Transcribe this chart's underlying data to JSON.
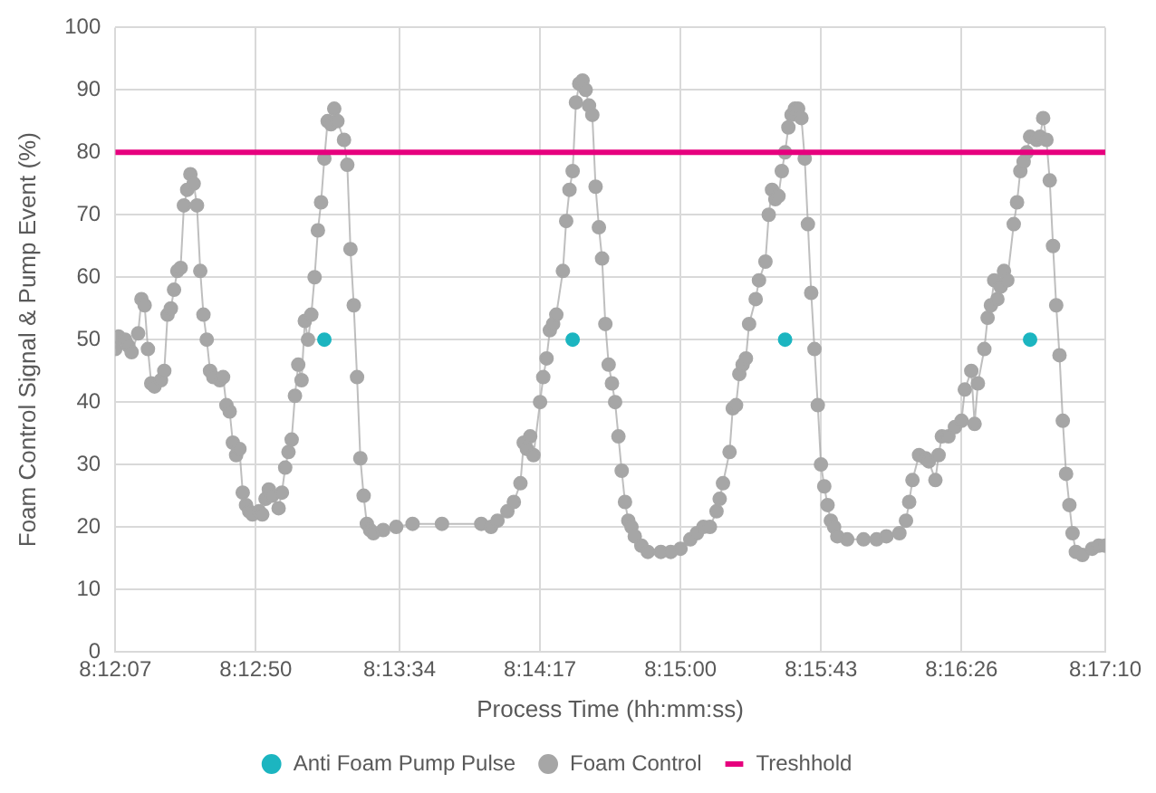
{
  "chart_data": {
    "type": "line",
    "xlabel": "Process Time (hh:mm:ss)",
    "ylabel": "Foam Control Signal & Pump Event (%)",
    "xlim": [
      8.201944,
      8.286111
    ],
    "ylim": [
      0,
      100
    ],
    "xticks": [
      {
        "value": 8.201944,
        "label": "8:12:07"
      },
      {
        "value": 8.213889,
        "label": "8:12:50"
      },
      {
        "value": 8.226111,
        "label": "8:13:34"
      },
      {
        "value": 8.238056,
        "label": "8:14:17"
      },
      {
        "value": 8.25,
        "label": "8:15:00"
      },
      {
        "value": 8.261944,
        "label": "8:15:43"
      },
      {
        "value": 8.273889,
        "label": "8:16:26"
      },
      {
        "value": 8.286111,
        "label": "8:17:10"
      }
    ],
    "yticks": [
      0,
      10,
      20,
      30,
      40,
      50,
      60,
      70,
      80,
      90,
      100
    ],
    "grid": true,
    "legend": "bottom",
    "marker": "circle",
    "series": [
      {
        "name": "Anti Foam Pump Pulse",
        "type": "scatter",
        "color": "#1cb5c0",
        "x": [
          8.21972,
          8.24083,
          8.25889,
          8.27972
        ],
        "values": [
          50,
          50,
          50,
          50
        ]
      },
      {
        "name": "Foam Control",
        "type": "line",
        "color": "#a6a6a6",
        "x": [
          8.201944,
          8.20222,
          8.20278,
          8.20306,
          8.20333,
          8.20389,
          8.20417,
          8.20444,
          8.20472,
          8.205,
          8.20528,
          8.20583,
          8.20611,
          8.20639,
          8.20667,
          8.20694,
          8.20722,
          8.2075,
          8.20778,
          8.20806,
          8.20833,
          8.20861,
          8.20889,
          8.20917,
          8.20944,
          8.20972,
          8.21,
          8.21028,
          8.21083,
          8.21111,
          8.21139,
          8.21167,
          8.21194,
          8.21222,
          8.2125,
          8.21278,
          8.21306,
          8.21333,
          8.21361,
          8.21417,
          8.21444,
          8.21472,
          8.215,
          8.21528,
          8.21583,
          8.21611,
          8.21639,
          8.21667,
          8.21694,
          8.21722,
          8.2175,
          8.21778,
          8.21806,
          8.21833,
          8.21861,
          8.21889,
          8.21917,
          8.21944,
          8.21972,
          8.22,
          8.22028,
          8.22056,
          8.22083,
          8.22139,
          8.22167,
          8.22194,
          8.22222,
          8.2225,
          8.22278,
          8.22306,
          8.22333,
          8.22361,
          8.22389,
          8.22472,
          8.22583,
          8.22722,
          8.22972,
          8.23306,
          8.23389,
          8.23444,
          8.23528,
          8.23583,
          8.23639,
          8.23667,
          8.23694,
          8.23722,
          8.2375,
          8.23806,
          8.23833,
          8.23861,
          8.23889,
          8.23917,
          8.23944,
          8.24,
          8.24028,
          8.24056,
          8.24083,
          8.24111,
          8.24139,
          8.24167,
          8.24194,
          8.24222,
          8.2425,
          8.24278,
          8.24306,
          8.24333,
          8.24361,
          8.24389,
          8.24417,
          8.24444,
          8.24472,
          8.245,
          8.24528,
          8.24556,
          8.24583,
          8.24611,
          8.24667,
          8.24722,
          8.24833,
          8.24917,
          8.25,
          8.25083,
          8.25139,
          8.25194,
          8.2525,
          8.25306,
          8.25333,
          8.25361,
          8.25417,
          8.25444,
          8.25472,
          8.255,
          8.25528,
          8.25556,
          8.25583,
          8.25639,
          8.25667,
          8.25722,
          8.2575,
          8.25778,
          8.25806,
          8.25833,
          8.25861,
          8.25889,
          8.25917,
          8.25944,
          8.25972,
          8.26,
          8.26028,
          8.26056,
          8.26083,
          8.26111,
          8.26139,
          8.26167,
          8.26194,
          8.26222,
          8.2625,
          8.26278,
          8.26306,
          8.26333,
          8.26417,
          8.26556,
          8.26667,
          8.2675,
          8.26861,
          8.26917,
          8.26944,
          8.26972,
          8.27028,
          8.27083,
          8.27111,
          8.27167,
          8.27194,
          8.27222,
          8.27278,
          8.27333,
          8.27389,
          8.27417,
          8.27472,
          8.275,
          8.27528,
          8.27583,
          8.27611,
          8.27639,
          8.27667,
          8.27694,
          8.27722,
          8.2775,
          8.27778,
          8.27833,
          8.27861,
          8.27889,
          8.27917,
          8.27944,
          8.27972,
          8.28028,
          8.28056,
          8.28083,
          8.28111,
          8.28139,
          8.28167,
          8.28194,
          8.28222,
          8.2825,
          8.28278,
          8.28306,
          8.28333,
          8.28361,
          8.28417,
          8.285,
          8.28556,
          8.28611
        ],
        "values": [
          48.5,
          50.5,
          50,
          49,
          48,
          51,
          56.5,
          55.5,
          48.5,
          43,
          42.5,
          43.5,
          45,
          54,
          55,
          58,
          61,
          61.5,
          71.5,
          74,
          76.5,
          75,
          71.5,
          61,
          54,
          50,
          45,
          44,
          43.5,
          44,
          39.5,
          38.5,
          33.5,
          31.5,
          32.5,
          25.5,
          23.5,
          22.5,
          22,
          22.5,
          22,
          24.5,
          26,
          25,
          23,
          25.5,
          29.5,
          32,
          34,
          41,
          46,
          43.5,
          53,
          50,
          54,
          60,
          67.5,
          72,
          79,
          85,
          84.5,
          87,
          85,
          82,
          78,
          64.5,
          55.5,
          44,
          31,
          25,
          20.5,
          19.5,
          19,
          19.5,
          20,
          20.5,
          20.5,
          20.5,
          20,
          21,
          22.5,
          24,
          27,
          33.5,
          32.5,
          34.5,
          31.5,
          40,
          44,
          47,
          51.5,
          52.5,
          54,
          61,
          69,
          74,
          77,
          88,
          91,
          91.5,
          90,
          87.5,
          86,
          74.5,
          68,
          63,
          52.5,
          46,
          43,
          40,
          34.5,
          29,
          24,
          21,
          20,
          18.5,
          17,
          16,
          16,
          16,
          16.5,
          18,
          19,
          20,
          20,
          22.5,
          24.5,
          27,
          32,
          39,
          39.5,
          44.5,
          46,
          47,
          52.5,
          56.5,
          59.5,
          62.5,
          70,
          74,
          72.5,
          73,
          77,
          80,
          84,
          86,
          87,
          87,
          85.5,
          79,
          68.5,
          57.5,
          48.5,
          39.5,
          30,
          26.5,
          23.5,
          21,
          20,
          18.5,
          18,
          18,
          18,
          18.5,
          19,
          21,
          24,
          27.5,
          31.5,
          31,
          30.5,
          27.5,
          31.5,
          34.5,
          34.5,
          36,
          37,
          42,
          45,
          36.5,
          43,
          48.5,
          53.5,
          55.5,
          59.5,
          56.5,
          58.5,
          61,
          59.5,
          68.5,
          72,
          77,
          78.5,
          80,
          82.5,
          82,
          82.5,
          85.5,
          82,
          75.5,
          65,
          55.5,
          47.5,
          37,
          28.5,
          23.5,
          19,
          16,
          15.5,
          16.5,
          17,
          17
        ]
      }
    ],
    "ref_lines": [
      {
        "axis": "y",
        "value": 80,
        "label": "Treshhold",
        "color": "#e6007e"
      }
    ]
  }
}
